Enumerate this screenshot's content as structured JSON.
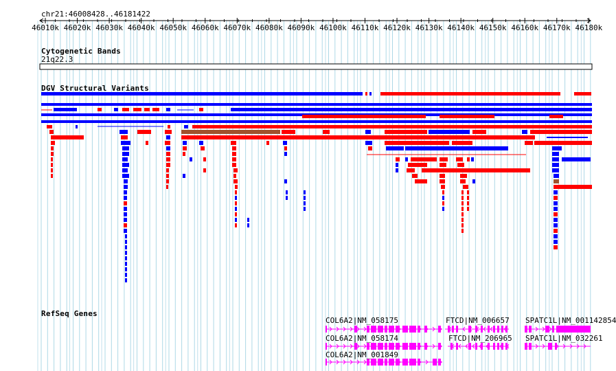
{
  "region": {
    "label": "chr21:46008428..46181422"
  },
  "ruler": {
    "ticks": [
      "46010k",
      "46020k",
      "46030k",
      "46040k",
      "46050k",
      "46060k",
      "46070k",
      "46080k",
      "46090k",
      "46100k",
      "46110k",
      "46120k",
      "46130k",
      "46140k",
      "46150k",
      "46160k",
      "46170k",
      "46180k"
    ]
  },
  "cytoband": {
    "title": "Cytogenetic Bands",
    "band": "21q22.3"
  },
  "dgv": {
    "title": "DGV Structural Variants"
  },
  "refseq": {
    "title": "RefSeq Genes",
    "genes": [
      "COL6A2|NM_058175",
      "COL6A2|NM_058174",
      "COL6A2|NM_001849",
      "FTCD|NM_006657",
      "FTCD|NM_206965",
      "SPATC1L|NM_001142854",
      "SPATC1L|NM_032261"
    ]
  },
  "colors": {
    "gain": "#0000ff",
    "loss": "#ff0000",
    "both": "#a0522d",
    "gene": "#ff00ff",
    "grid": "#add8e6"
  }
}
